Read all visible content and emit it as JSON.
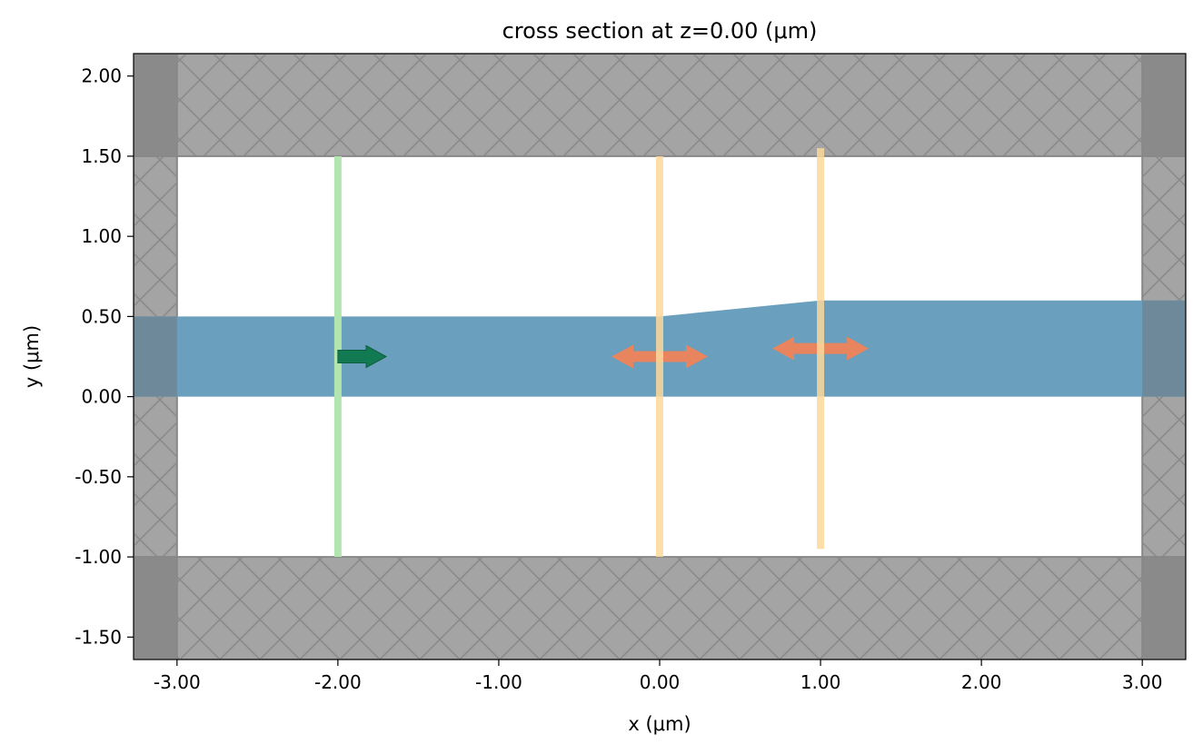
{
  "chart_data": {
    "type": "cross-section",
    "title": "cross section at z=0.00 (μm)",
    "xlabel": "x (μm)",
    "ylabel": "y (μm)",
    "xlim": [
      -3.27,
      3.27
    ],
    "ylim": [
      -1.64,
      2.14
    ],
    "xticks": [
      {
        "value": -3,
        "label": "-3.00"
      },
      {
        "value": -2,
        "label": "-2.00"
      },
      {
        "value": -1,
        "label": "-1.00"
      },
      {
        "value": 0,
        "label": "0.00"
      },
      {
        "value": 1,
        "label": "1.00"
      },
      {
        "value": 2,
        "label": "2.00"
      },
      {
        "value": 3,
        "label": "3.00"
      }
    ],
    "yticks": [
      {
        "value": 2,
        "label": "2.00"
      },
      {
        "value": 1.5,
        "label": "1.50"
      },
      {
        "value": 1,
        "label": "1.00"
      },
      {
        "value": 0.5,
        "label": "0.50"
      },
      {
        "value": 0,
        "label": "0.00"
      },
      {
        "value": -0.5,
        "label": "-0.50"
      },
      {
        "value": -1,
        "label": "-1.00"
      },
      {
        "value": -1.5,
        "label": "-1.50"
      }
    ],
    "pml_regions": [
      {
        "x": [
          -3.27,
          3.27
        ],
        "y": [
          1.5,
          2.14
        ]
      },
      {
        "x": [
          -3.27,
          3.27
        ],
        "y": [
          -1.64,
          -1.0
        ]
      },
      {
        "x": [
          -3.27,
          -3.0
        ],
        "y": [
          -1.64,
          2.14
        ]
      },
      {
        "x": [
          3.0,
          3.27
        ],
        "y": [
          -1.64,
          2.14
        ]
      }
    ],
    "waveguide": {
      "color": "#6a9fbd",
      "points": [
        [
          -3.27,
          0.0
        ],
        [
          -3.27,
          0.5
        ],
        [
          0.0,
          0.5
        ],
        [
          1.0,
          0.6
        ],
        [
          3.27,
          0.6
        ],
        [
          3.27,
          0.0
        ]
      ]
    },
    "sources": [
      {
        "x": -2.0,
        "y": [
          -1.0,
          1.5
        ],
        "color": "#b3e5b0",
        "arrow": {
          "y": 0.25,
          "dx": 0.3,
          "color": "#127a52"
        }
      }
    ],
    "monitors": [
      {
        "x": 0.0,
        "y": [
          -1.0,
          1.5
        ],
        "color": "#fdd89a",
        "arrow": {
          "y": 0.25,
          "color": "#e8845e"
        }
      },
      {
        "x": 1.0,
        "y": [
          -0.95,
          1.55
        ],
        "color": "#fdd89a",
        "arrow": {
          "y": 0.3,
          "color": "#e8845e"
        }
      }
    ]
  }
}
